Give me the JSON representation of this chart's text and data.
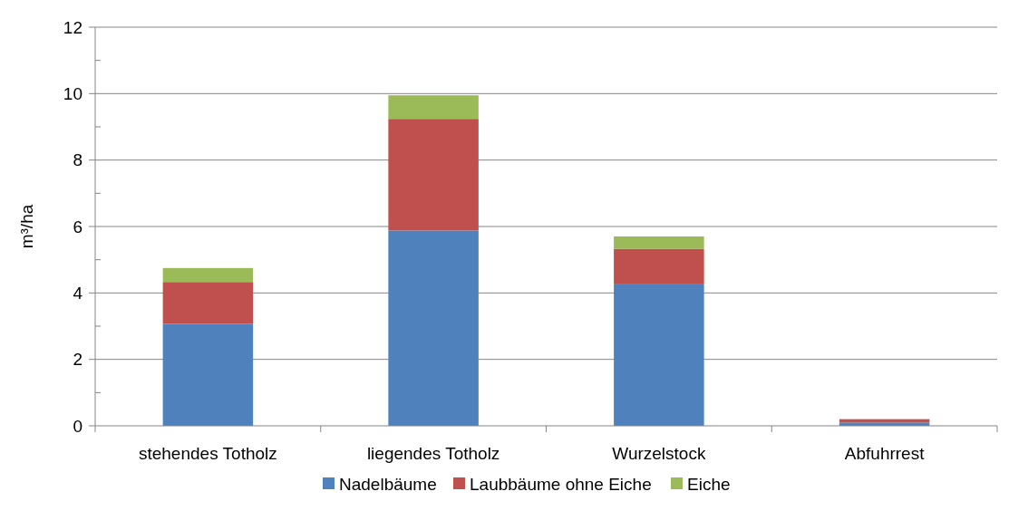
{
  "chart_data": {
    "type": "bar",
    "stacked": true,
    "ylabel": "m³/ha",
    "categories": [
      "stehendes Totholz",
      "liegendes Totholz",
      "Wurzelstock",
      "Abfuhrrest"
    ],
    "series": [
      {
        "name": "Nadelbäume",
        "color": "#4f81bd",
        "values": [
          3.07,
          5.88,
          4.28,
          0.1
        ]
      },
      {
        "name": "Laubbäume ohne Eiche",
        "color": "#c0504d",
        "values": [
          1.26,
          3.36,
          1.05,
          0.1
        ]
      },
      {
        "name": "Eiche",
        "color": "#9bbb59",
        "values": [
          0.42,
          0.71,
          0.37,
          null
        ]
      }
    ],
    "ylim": [
      0,
      12
    ],
    "yticks": [
      0,
      {
        "value": 1,
        "label": null
      },
      2,
      {
        "value": 3,
        "label": null
      },
      4,
      {
        "value": 5,
        "label": null
      },
      6,
      {
        "value": 7,
        "label": null
      },
      8,
      {
        "value": 9,
        "label": null
      },
      10,
      {
        "value": 11,
        "label": null
      },
      12
    ],
    "grid": "y",
    "legend": "bottom"
  }
}
